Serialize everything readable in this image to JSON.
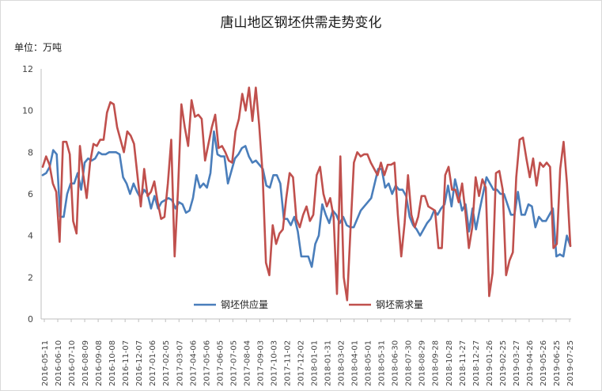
{
  "chart_data": {
    "type": "line",
    "title": "唐山地区钢坯供需走势变化",
    "unit_label": "单位：万吨",
    "ylim": [
      0,
      12
    ],
    "yticks": [
      0,
      2,
      4,
      6,
      8,
      10,
      12
    ],
    "grid": false,
    "legend_position": "bottom-center",
    "x_tick_labels": [
      "2016-05-11",
      "2016-06-10",
      "2016-07-10",
      "2016-08-09",
      "2016-09-08",
      "2016-10-08",
      "2016-11-07",
      "2016-12-07",
      "2017-01-06",
      "2017-02-05",
      "2017-03-07",
      "2017-04-06",
      "2017-05-06",
      "2017-06-05",
      "2017-07-05",
      "2017-08-04",
      "2017-09-03",
      "2017-10-03",
      "2017-11-02",
      "2017-12-02",
      "2018-01-01",
      "2018-01-31",
      "2018-03-02",
      "2018-04-01",
      "2018-05-01",
      "2018-05-31",
      "2018-06-30",
      "2018-07-30",
      "2018-08-29",
      "2018-09-28",
      "2018-10-28",
      "2018-11-27",
      "2018-12-27",
      "2019-01-26",
      "2019-02-25",
      "2019-03-27",
      "2019-04-26",
      "2019-05-26",
      "2019-06-25",
      "2019-07-25"
    ],
    "series": [
      {
        "name": "钢坯供应量",
        "color": "#4a7ebb",
        "values": [
          6.9,
          7.0,
          7.3,
          8.1,
          7.9,
          4.9,
          4.9,
          6.0,
          6.5,
          6.5,
          7.0,
          6.2,
          7.5,
          7.7,
          7.6,
          7.7,
          8.0,
          7.9,
          7.9,
          8.0,
          8.0,
          8.0,
          7.9,
          6.8,
          6.5,
          6.0,
          6.5,
          6.1,
          5.8,
          6.2,
          6.0,
          5.3,
          5.9,
          5.3,
          5.6,
          5.7,
          5.8,
          5.7,
          5.3,
          5.6,
          5.5,
          5.1,
          5.2,
          5.8,
          6.9,
          6.3,
          6.5,
          6.3,
          7.0,
          9.0,
          7.9,
          7.8,
          7.8,
          6.5,
          7.1,
          7.7,
          7.9,
          8.2,
          8.3,
          7.8,
          7.5,
          7.6,
          7.4,
          7.2,
          6.4,
          6.3,
          6.9,
          6.9,
          6.5,
          4.8,
          4.8,
          4.5,
          4.9,
          4.2,
          3.0,
          3.0,
          3.0,
          2.5,
          3.6,
          4.0,
          5.5,
          5.0,
          4.6,
          5.2,
          5.0,
          4.6,
          4.9,
          4.5,
          4.4,
          4.4,
          4.8,
          5.2,
          5.4,
          5.6,
          5.8,
          6.5,
          7.2,
          7.2,
          6.3,
          6.5,
          6.0,
          6.4,
          6.2,
          6.2,
          5.9,
          4.9,
          4.5,
          4.3,
          4.0,
          4.3,
          4.6,
          4.8,
          5.2,
          5.0,
          5.3,
          5.5,
          6.4,
          5.4,
          6.7,
          6.0,
          5.2,
          5.5,
          4.2,
          5.3,
          4.3,
          5.2,
          6.0,
          6.8,
          6.5,
          6.2,
          6.2,
          6.0,
          6.0,
          5.5,
          5.0,
          5.0,
          6.1,
          5.0,
          5.0,
          5.5,
          5.4,
          4.4,
          4.9,
          4.7,
          4.7,
          5.0,
          5.3,
          3.0,
          3.1,
          3.0,
          4.0,
          3.5
        ]
      },
      {
        "name": "钢坯需求量",
        "color": "#c0504d",
        "values": [
          7.3,
          7.8,
          7.4,
          6.5,
          6.1,
          3.7,
          8.5,
          8.5,
          7.9,
          4.7,
          4.1,
          8.3,
          6.9,
          5.8,
          7.5,
          8.4,
          8.3,
          8.6,
          8.6,
          9.9,
          10.4,
          10.3,
          9.2,
          8.6,
          8.0,
          9.0,
          8.8,
          8.4,
          6.9,
          5.4,
          7.2,
          5.9,
          6.1,
          6.6,
          5.6,
          4.8,
          4.9,
          6.5,
          8.6,
          3.0,
          6.2,
          10.3,
          9.2,
          8.3,
          10.5,
          9.7,
          9.8,
          9.6,
          7.6,
          8.4,
          9.2,
          9.8,
          8.2,
          8.3,
          8.0,
          7.6,
          7.5,
          9.0,
          9.6,
          10.8,
          10.0,
          11.1,
          9.5,
          11.1,
          9.3,
          7.0,
          2.7,
          2.1,
          4.5,
          3.6,
          4.1,
          4.3,
          5.8,
          7.0,
          6.8,
          4.8,
          4.4,
          5.0,
          5.4,
          4.7,
          5.0,
          6.9,
          7.3,
          6.0,
          5.4,
          5.8,
          4.9,
          1.2,
          7.8,
          2.0,
          0.9,
          4.3,
          7.5,
          8.0,
          7.8,
          7.9,
          7.9,
          7.5,
          7.2,
          6.9,
          7.5,
          6.9,
          7.4,
          7.4,
          7.5,
          5.0,
          3.0,
          4.6,
          6.9,
          5.0,
          4.4,
          4.9,
          5.9,
          5.9,
          5.4,
          5.3,
          5.2,
          3.4,
          3.4,
          6.9,
          7.3,
          6.2,
          6.2,
          5.6,
          6.5,
          5.1,
          3.4,
          4.4,
          6.8,
          5.9,
          6.7,
          6.3,
          1.1,
          2.2,
          7.0,
          7.1,
          6.2,
          2.1,
          2.8,
          3.2,
          6.8,
          8.6,
          8.7,
          7.7,
          6.8,
          7.7,
          6.4,
          7.5,
          7.3,
          7.5,
          7.3,
          3.4,
          3.6,
          7.2,
          8.5,
          6.5,
          3.5
        ]
      }
    ]
  }
}
